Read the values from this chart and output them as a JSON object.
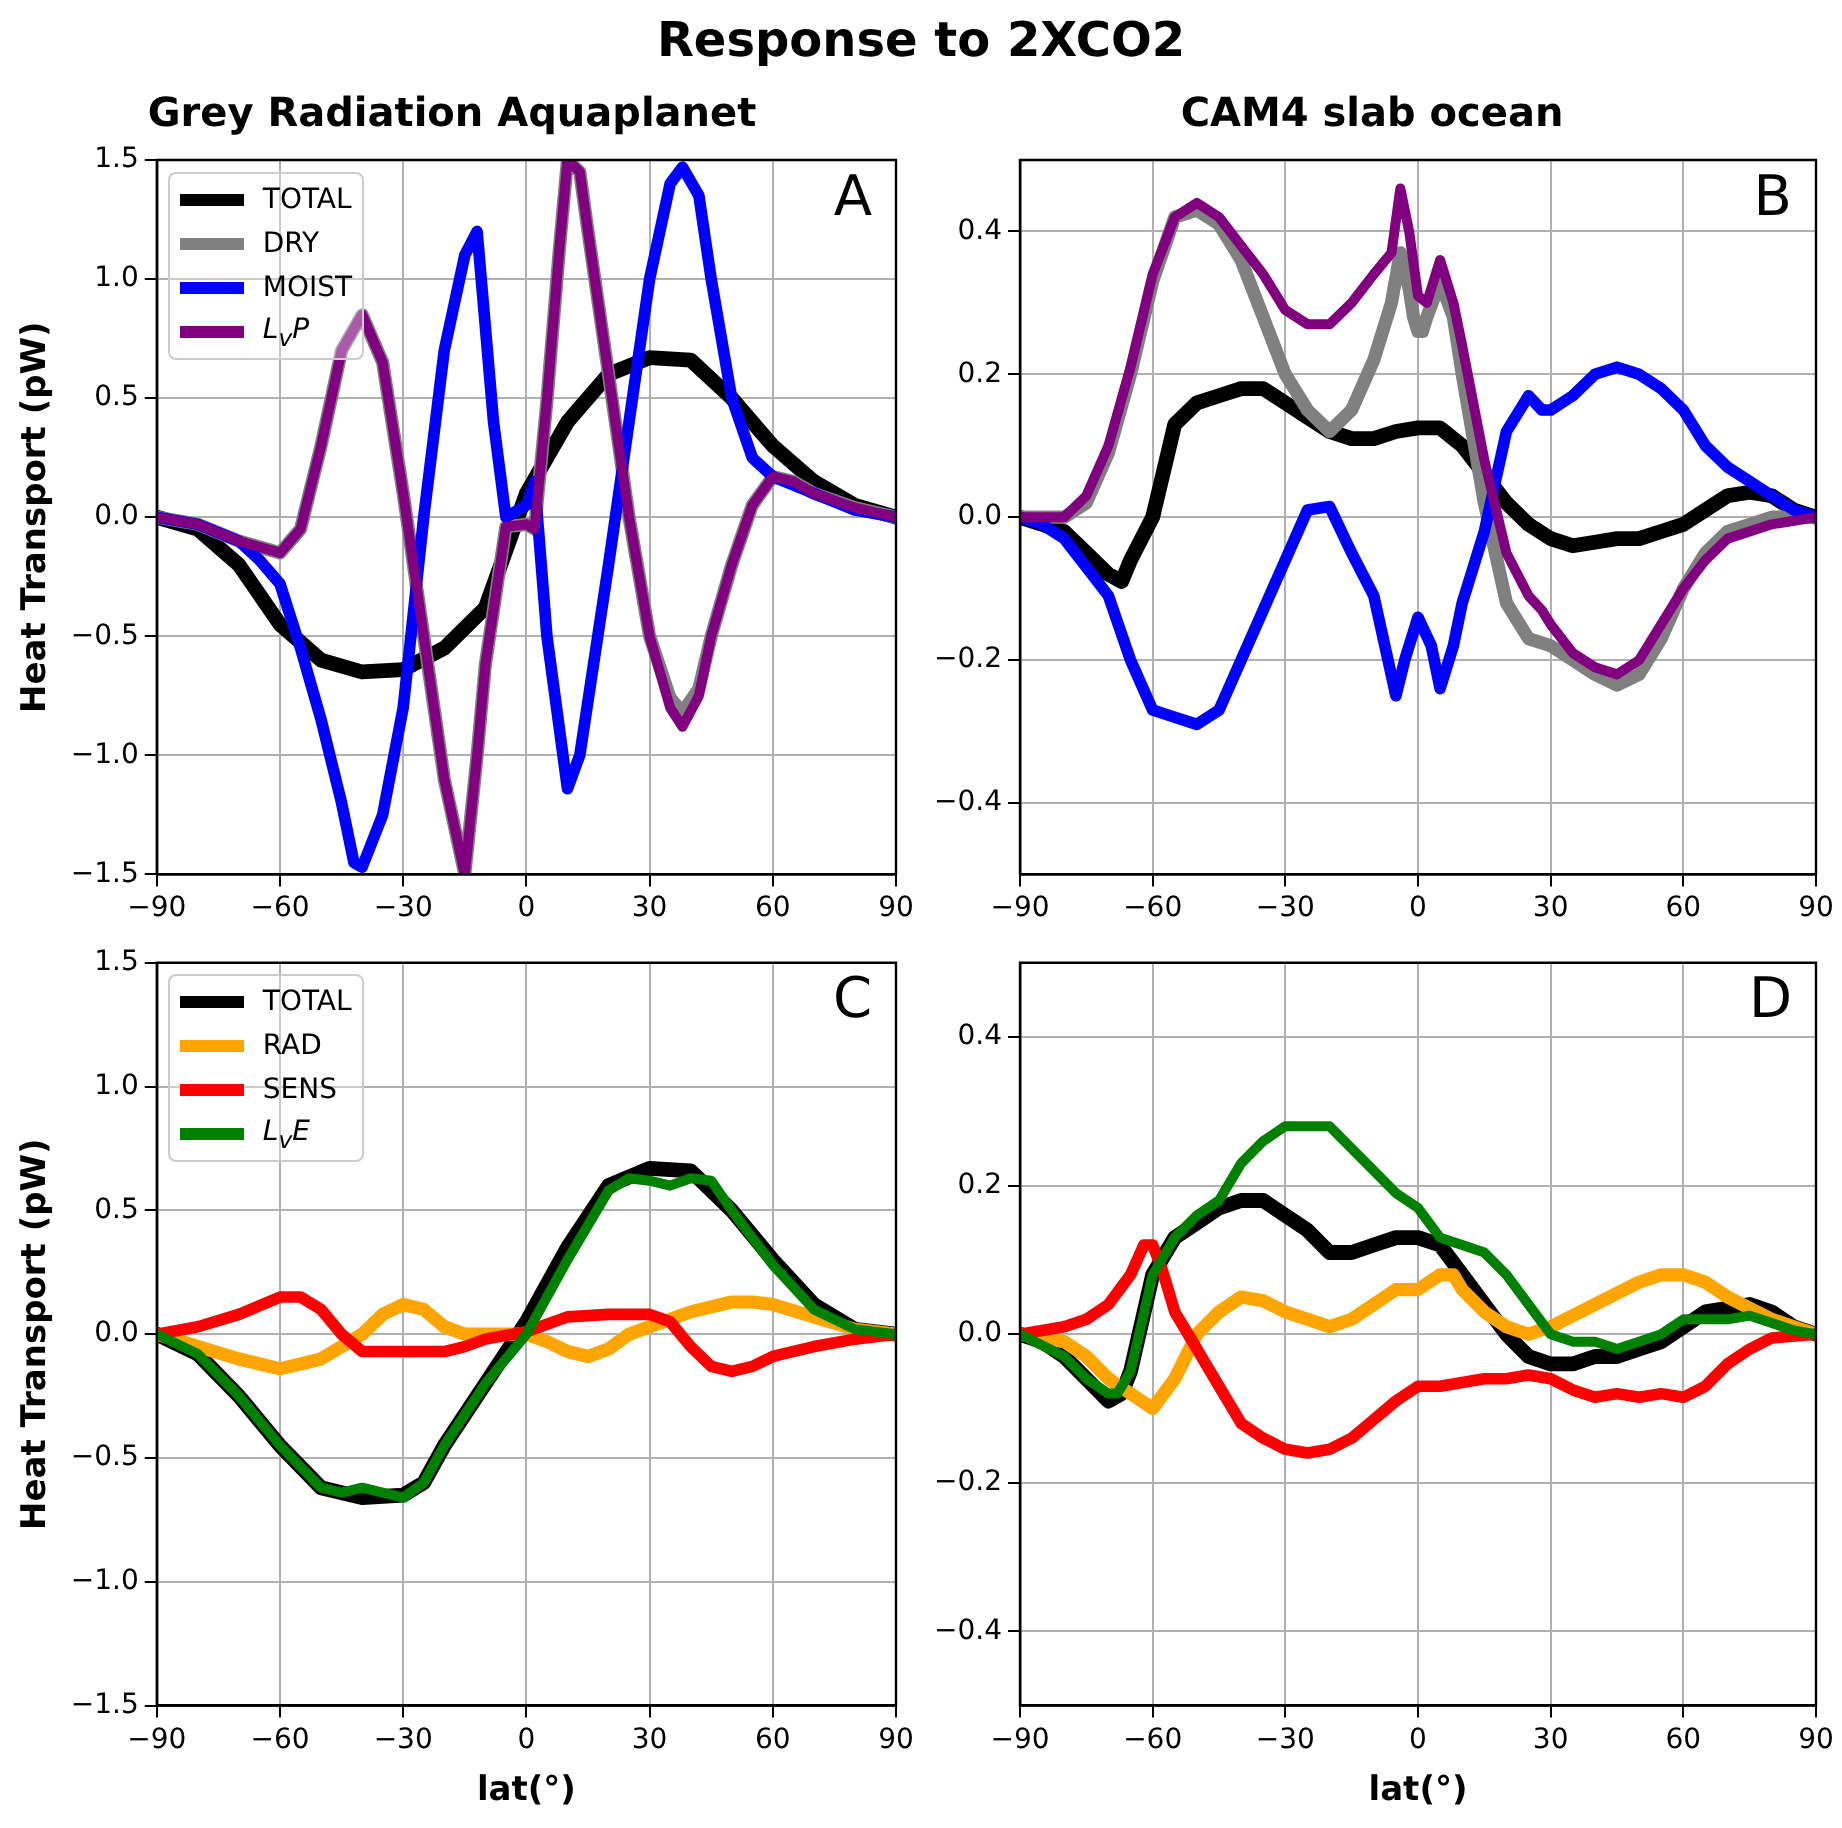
{
  "chart_data": [
    {
      "type": "line",
      "title": "Response to 2XCO2",
      "subtitle": "Grey Radiation Aquaplanet",
      "ylabel": "Heat Transport (pW)",
      "annotations": [
        "A"
      ],
      "legend": "top left",
      "grid": true,
      "xlim": [
        -90,
        90
      ],
      "xticks": [
        {
          "value": -90,
          "label": "−90"
        },
        {
          "value": -60,
          "label": "−60"
        },
        {
          "value": -30,
          "label": "−30"
        },
        0,
        30,
        60,
        90
      ],
      "ylim": [
        -1.5,
        1.5
      ],
      "yticks": [
        {
          "value": -1.5,
          "label": "−1.5"
        },
        {
          "value": -1,
          "label": "−1.0"
        },
        {
          "value": -0.5,
          "label": "−0.5"
        },
        {
          "value": 0,
          "label": "0.0"
        },
        0.5,
        {
          "value": 1,
          "label": "1.0"
        },
        1.5
      ],
      "series": [
        {
          "name": "TOTAL",
          "color": "#000000",
          "x": [
            -90,
            -80,
            -70,
            -60,
            -50,
            -40,
            -30,
            -20,
            -10,
            0,
            10,
            20,
            30,
            40,
            50,
            60,
            70,
            80,
            90
          ],
          "values": [
            0,
            -0.05,
            -0.2,
            -0.45,
            -0.6,
            -0.65,
            -0.64,
            -0.55,
            -0.38,
            0.1,
            0.4,
            0.6,
            0.67,
            0.66,
            0.5,
            0.3,
            0.15,
            0.05,
            0
          ]
        },
        {
          "name": "DRY",
          "color": "#808080",
          "x": [
            -90,
            -80,
            -70,
            -60,
            -55,
            -50,
            -45,
            -40,
            -35,
            -30,
            -25,
            -20,
            -15,
            -12,
            -10,
            -5,
            0,
            2,
            5,
            8,
            10,
            13,
            15,
            20,
            25,
            30,
            35,
            38,
            42,
            45,
            50,
            55,
            60,
            65,
            70,
            80,
            90
          ],
          "values": [
            0,
            -0.03,
            -0.1,
            -0.15,
            -0.05,
            0.3,
            0.7,
            0.85,
            0.65,
            0.1,
            -0.5,
            -1.1,
            -1.5,
            -1.0,
            -0.62,
            -0.04,
            -0.03,
            -0.05,
            0.49,
            1.12,
            1.5,
            1.45,
            1.2,
            0.6,
            0,
            -0.5,
            -0.76,
            -0.82,
            -0.72,
            -0.5,
            -0.2,
            0.05,
            0.17,
            0.15,
            0.1,
            0.04,
            0
          ]
        },
        {
          "name": "MOIST",
          "color": "#0000ff",
          "x": [
            -90,
            -80,
            -70,
            -65,
            -60,
            -55,
            -50,
            -45,
            -42,
            -40,
            -35,
            -30,
            -25,
            -20,
            -15,
            -12,
            -8,
            -5,
            0,
            2,
            5,
            10,
            13,
            20,
            25,
            30,
            35,
            38,
            42,
            45,
            50,
            55,
            60,
            70,
            80,
            90
          ],
          "values": [
            0,
            -0.03,
            -0.1,
            -0.18,
            -0.28,
            -0.55,
            -0.85,
            -1.2,
            -1.45,
            -1.47,
            -1.25,
            -0.8,
            0,
            0.7,
            1.1,
            1.2,
            0.4,
            0,
            0.05,
            0.15,
            -0.5,
            -1.14,
            -1.0,
            -0.2,
            0.4,
            1.0,
            1.4,
            1.47,
            1.35,
            1.0,
            0.5,
            0.25,
            0.17,
            0.1,
            0.03,
            0
          ]
        },
        {
          "name": "L$_{v}$P",
          "color": "#800080",
          "x": [
            -90,
            -80,
            -70,
            -60,
            -55,
            -50,
            -45,
            -40,
            -35,
            -30,
            -25,
            -20,
            -15,
            -12,
            -10,
            -5,
            0,
            2,
            5,
            8,
            10,
            13,
            15,
            20,
            25,
            30,
            35,
            38,
            42,
            45,
            50,
            55,
            60,
            65,
            70,
            80,
            90
          ],
          "values": [
            0,
            -0.03,
            -0.1,
            -0.15,
            -0.05,
            0.3,
            0.7,
            0.85,
            0.65,
            0.1,
            -0.5,
            -1.1,
            -1.5,
            -1.0,
            -0.62,
            -0.04,
            -0.03,
            -0.05,
            0.49,
            1.12,
            1.5,
            1.45,
            1.2,
            0.6,
            0,
            -0.5,
            -0.8,
            -0.88,
            -0.75,
            -0.5,
            -0.2,
            0.05,
            0.17,
            0.15,
            0.1,
            0.04,
            0
          ]
        }
      ]
    },
    {
      "type": "line",
      "subtitle": "CAM4 slab ocean",
      "annotations": [
        "B"
      ],
      "grid": true,
      "xlim": [
        -90,
        90
      ],
      "xticks": [
        {
          "value": -90,
          "label": "−90"
        },
        {
          "value": -60,
          "label": "−60"
        },
        {
          "value": -30,
          "label": "−30"
        },
        0,
        30,
        60,
        90
      ],
      "ylim": [
        -0.5,
        0.5
      ],
      "yticks": [
        {
          "value": -0.4,
          "label": "−0.4"
        },
        {
          "value": -0.2,
          "label": "−0.2"
        },
        {
          "value": 0,
          "label": "0.0"
        },
        0.2,
        0.4
      ],
      "series": [
        {
          "color": "#000000",
          "x": [
            -90,
            -80,
            -75,
            -70,
            -67,
            -65,
            -60,
            -55,
            -50,
            -45,
            -40,
            -35,
            -30,
            -25,
            -20,
            -15,
            -10,
            -5,
            0,
            5,
            10,
            15,
            20,
            25,
            30,
            35,
            40,
            45,
            50,
            55,
            60,
            65,
            70,
            75,
            80,
            85,
            90
          ],
          "values": [
            0,
            -0.02,
            -0.05,
            -0.08,
            -0.09,
            -0.06,
            0,
            0.13,
            0.16,
            0.17,
            0.18,
            0.18,
            0.16,
            0.14,
            0.12,
            0.11,
            0.11,
            0.12,
            0.125,
            0.125,
            0.1,
            0.06,
            0.02,
            -0.01,
            -0.03,
            -0.04,
            -0.035,
            -0.03,
            -0.03,
            -0.02,
            -0.01,
            0.01,
            0.03,
            0.035,
            0.03,
            0.01,
            0
          ]
        },
        {
          "color": "#808080",
          "x": [
            -90,
            -80,
            -75,
            -70,
            -65,
            -60,
            -55,
            -50,
            -45,
            -40,
            -35,
            -30,
            -25,
            -20,
            -15,
            -10,
            -6,
            -4,
            -2,
            -1,
            0,
            1,
            2,
            5,
            8,
            10,
            15,
            20,
            25,
            30,
            35,
            40,
            45,
            50,
            55,
            60,
            65,
            70,
            80,
            90
          ],
          "values": [
            0,
            0,
            0.02,
            0.09,
            0.2,
            0.33,
            0.42,
            0.43,
            0.41,
            0.36,
            0.28,
            0.2,
            0.15,
            0.12,
            0.15,
            0.22,
            0.3,
            0.37,
            0.32,
            0.28,
            0.26,
            0.26,
            0.28,
            0.33,
            0.28,
            0.2,
            0.02,
            -0.12,
            -0.17,
            -0.18,
            -0.2,
            -0.22,
            -0.235,
            -0.22,
            -0.17,
            -0.1,
            -0.05,
            -0.02,
            0,
            0
          ]
        },
        {
          "color": "#0000ff",
          "x": [
            -90,
            -85,
            -80,
            -75,
            -70,
            -65,
            -60,
            -55,
            -50,
            -45,
            -40,
            -35,
            -30,
            -25,
            -20,
            -15,
            -10,
            -5,
            -3,
            0,
            3,
            5,
            8,
            10,
            15,
            20,
            25,
            28,
            30,
            35,
            40,
            45,
            50,
            55,
            60,
            65,
            70,
            75,
            80,
            85,
            90
          ],
          "values": [
            0,
            -0.01,
            -0.03,
            -0.07,
            -0.11,
            -0.2,
            -0.27,
            -0.28,
            -0.29,
            -0.27,
            -0.2,
            -0.13,
            -0.06,
            0.01,
            0.015,
            -0.05,
            -0.11,
            -0.25,
            -0.2,
            -0.14,
            -0.18,
            -0.24,
            -0.18,
            -0.12,
            -0.02,
            0.12,
            0.17,
            0.15,
            0.15,
            0.17,
            0.2,
            0.21,
            0.2,
            0.18,
            0.15,
            0.1,
            0.07,
            0.05,
            0.03,
            0.01,
            0
          ]
        },
        {
          "color": "#800080",
          "x": [
            -90,
            -80,
            -75,
            -70,
            -65,
            -60,
            -55,
            -50,
            -45,
            -40,
            -35,
            -30,
            -25,
            -20,
            -15,
            -10,
            -6,
            -4,
            -2,
            0,
            2,
            5,
            8,
            10,
            15,
            20,
            25,
            28,
            30,
            35,
            40,
            45,
            50,
            55,
            60,
            65,
            70,
            80,
            90
          ],
          "values": [
            0,
            0,
            0.03,
            0.1,
            0.21,
            0.34,
            0.42,
            0.44,
            0.42,
            0.38,
            0.34,
            0.29,
            0.27,
            0.27,
            0.3,
            0.34,
            0.37,
            0.46,
            0.4,
            0.31,
            0.3,
            0.36,
            0.3,
            0.24,
            0.08,
            -0.05,
            -0.11,
            -0.13,
            -0.15,
            -0.19,
            -0.21,
            -0.22,
            -0.2,
            -0.15,
            -0.1,
            -0.06,
            -0.03,
            -0.01,
            0
          ]
        }
      ]
    },
    {
      "type": "line",
      "xlabel": "lat(°)",
      "ylabel": "Heat Transport (pW)",
      "annotations": [
        "C"
      ],
      "legend": "top left",
      "grid": true,
      "xlim": [
        -90,
        90
      ],
      "xticks": [
        {
          "value": -90,
          "label": "−90"
        },
        {
          "value": -60,
          "label": "−60"
        },
        {
          "value": -30,
          "label": "−30"
        },
        0,
        30,
        60,
        90
      ],
      "ylim": [
        -1.5,
        1.5
      ],
      "yticks": [
        {
          "value": -1.5,
          "label": "−1.5"
        },
        {
          "value": -1,
          "label": "−1.0"
        },
        {
          "value": -0.5,
          "label": "−0.5"
        },
        {
          "value": 0,
          "label": "0.0"
        },
        0.5,
        {
          "value": 1,
          "label": "1.0"
        },
        1.5
      ],
      "series": [
        {
          "name": "TOTAL",
          "color": "#000000",
          "x": [
            -90,
            -80,
            -70,
            -60,
            -50,
            -40,
            -30,
            -25,
            -20,
            -10,
            0,
            10,
            20,
            30,
            40,
            50,
            60,
            70,
            80,
            90
          ],
          "values": [
            0,
            -0.08,
            -0.25,
            -0.45,
            -0.62,
            -0.66,
            -0.65,
            -0.6,
            -0.45,
            -0.2,
            0.05,
            0.35,
            0.6,
            0.67,
            0.66,
            0.5,
            0.3,
            0.12,
            0.02,
            0
          ]
        },
        {
          "name": "RAD",
          "color": "#ffa500",
          "x": [
            -90,
            -80,
            -70,
            -60,
            -50,
            -40,
            -35,
            -30,
            -25,
            -20,
            -15,
            -10,
            -5,
            0,
            5,
            10,
            15,
            20,
            25,
            30,
            40,
            50,
            55,
            60,
            70,
            80,
            90
          ],
          "values": [
            0,
            -0.05,
            -0.1,
            -0.14,
            -0.1,
            0,
            0.08,
            0.12,
            0.1,
            0.03,
            0,
            0,
            0,
            0,
            -0.03,
            -0.07,
            -0.09,
            -0.06,
            0,
            0.03,
            0.09,
            0.13,
            0.13,
            0.12,
            0.07,
            0.02,
            0
          ]
        },
        {
          "name": "SENS",
          "color": "#ff0000",
          "x": [
            -90,
            -80,
            -70,
            -60,
            -55,
            -50,
            -45,
            -40,
            -30,
            -20,
            -15,
            -10,
            0,
            5,
            10,
            20,
            30,
            35,
            40,
            45,
            50,
            55,
            60,
            70,
            80,
            90
          ],
          "values": [
            0,
            0.03,
            0.08,
            0.15,
            0.15,
            0.1,
            0,
            -0.07,
            -0.07,
            -0.07,
            -0.05,
            -0.02,
            0.01,
            0.04,
            0.07,
            0.08,
            0.08,
            0.05,
            -0.05,
            -0.13,
            -0.15,
            -0.13,
            -0.09,
            -0.05,
            -0.02,
            0
          ]
        },
        {
          "name": "L$_{v}$E",
          "color": "#008000",
          "x": [
            -90,
            -80,
            -70,
            -60,
            -50,
            -45,
            -40,
            -35,
            -30,
            -25,
            -20,
            -10,
            0,
            10,
            20,
            25,
            30,
            35,
            40,
            45,
            50,
            60,
            70,
            80,
            90
          ],
          "values": [
            0,
            -0.08,
            -0.25,
            -0.45,
            -0.62,
            -0.64,
            -0.62,
            -0.64,
            -0.66,
            -0.6,
            -0.45,
            -0.2,
            0,
            0.3,
            0.58,
            0.63,
            0.62,
            0.6,
            0.63,
            0.62,
            0.5,
            0.28,
            0.1,
            0.02,
            0
          ]
        }
      ]
    },
    {
      "type": "line",
      "xlabel": "lat(°)",
      "annotations": [
        "D"
      ],
      "grid": true,
      "xlim": [
        -90,
        90
      ],
      "xticks": [
        {
          "value": -90,
          "label": "−90"
        },
        {
          "value": -60,
          "label": "−60"
        },
        {
          "value": -30,
          "label": "−30"
        },
        0,
        30,
        60,
        90
      ],
      "ylim": [
        -0.5,
        0.5
      ],
      "yticks": [
        {
          "value": -0.4,
          "label": "−0.4"
        },
        {
          "value": -0.2,
          "label": "−0.2"
        },
        {
          "value": 0,
          "label": "0.0"
        },
        0.2,
        0.4
      ],
      "series": [
        {
          "color": "#000000",
          "x": [
            -90,
            -85,
            -80,
            -75,
            -70,
            -67,
            -65,
            -60,
            -55,
            -50,
            -45,
            -40,
            -35,
            -30,
            -25,
            -20,
            -15,
            -10,
            -5,
            0,
            5,
            10,
            15,
            20,
            25,
            30,
            35,
            40,
            45,
            50,
            55,
            60,
            65,
            70,
            75,
            80,
            85,
            90
          ],
          "values": [
            0,
            -0.01,
            -0.03,
            -0.06,
            -0.09,
            -0.08,
            -0.05,
            0.08,
            0.13,
            0.15,
            0.17,
            0.18,
            0.18,
            0.16,
            0.14,
            0.11,
            0.11,
            0.12,
            0.13,
            0.13,
            0.12,
            0.08,
            0.04,
            0,
            -0.03,
            -0.04,
            -0.04,
            -0.03,
            -0.03,
            -0.02,
            -0.01,
            0.01,
            0.03,
            0.035,
            0.04,
            0.03,
            0.01,
            0
          ]
        },
        {
          "color": "#ffa500",
          "x": [
            -90,
            -80,
            -75,
            -70,
            -65,
            -60,
            -55,
            -50,
            -45,
            -40,
            -35,
            -30,
            -25,
            -20,
            -15,
            -10,
            -5,
            0,
            5,
            8,
            10,
            15,
            20,
            25,
            30,
            40,
            50,
            55,
            60,
            65,
            70,
            80,
            90
          ],
          "values": [
            0,
            -0.01,
            -0.03,
            -0.06,
            -0.08,
            -0.1,
            -0.06,
            0,
            0.03,
            0.05,
            0.045,
            0.03,
            0.02,
            0.01,
            0.02,
            0.04,
            0.06,
            0.06,
            0.08,
            0.08,
            0.06,
            0.03,
            0.01,
            0,
            0.01,
            0.04,
            0.07,
            0.08,
            0.08,
            0.07,
            0.05,
            0.02,
            0
          ]
        },
        {
          "color": "#ff0000",
          "x": [
            -90,
            -80,
            -75,
            -70,
            -65,
            -62,
            -60,
            -58,
            -55,
            -50,
            -45,
            -40,
            -35,
            -30,
            -25,
            -20,
            -15,
            -10,
            -5,
            0,
            5,
            10,
            15,
            20,
            25,
            30,
            35,
            40,
            45,
            50,
            55,
            60,
            65,
            70,
            75,
            80,
            90
          ],
          "values": [
            0,
            0.01,
            0.02,
            0.04,
            0.08,
            0.12,
            0.12,
            0.09,
            0.03,
            -0.02,
            -0.07,
            -0.12,
            -0.14,
            -0.155,
            -0.16,
            -0.155,
            -0.14,
            -0.115,
            -0.09,
            -0.07,
            -0.07,
            -0.065,
            -0.06,
            -0.06,
            -0.055,
            -0.06,
            -0.075,
            -0.085,
            -0.08,
            -0.085,
            -0.08,
            -0.085,
            -0.07,
            -0.04,
            -0.02,
            -0.005,
            0
          ]
        },
        {
          "color": "#008000",
          "x": [
            -90,
            -80,
            -75,
            -70,
            -68,
            -65,
            -60,
            -55,
            -50,
            -45,
            -40,
            -35,
            -30,
            -25,
            -20,
            -15,
            -10,
            -5,
            0,
            5,
            10,
            15,
            20,
            25,
            30,
            35,
            40,
            45,
            50,
            55,
            60,
            65,
            70,
            75,
            80,
            85,
            90
          ],
          "values": [
            0,
            -0.03,
            -0.06,
            -0.08,
            -0.08,
            -0.05,
            0.08,
            0.13,
            0.16,
            0.18,
            0.23,
            0.26,
            0.28,
            0.28,
            0.28,
            0.25,
            0.22,
            0.19,
            0.17,
            0.13,
            0.12,
            0.11,
            0.08,
            0.04,
            0,
            -0.01,
            -0.01,
            -0.02,
            -0.01,
            0,
            0.02,
            0.02,
            0.02,
            0.025,
            0.015,
            0.005,
            0
          ]
        }
      ]
    }
  ]
}
